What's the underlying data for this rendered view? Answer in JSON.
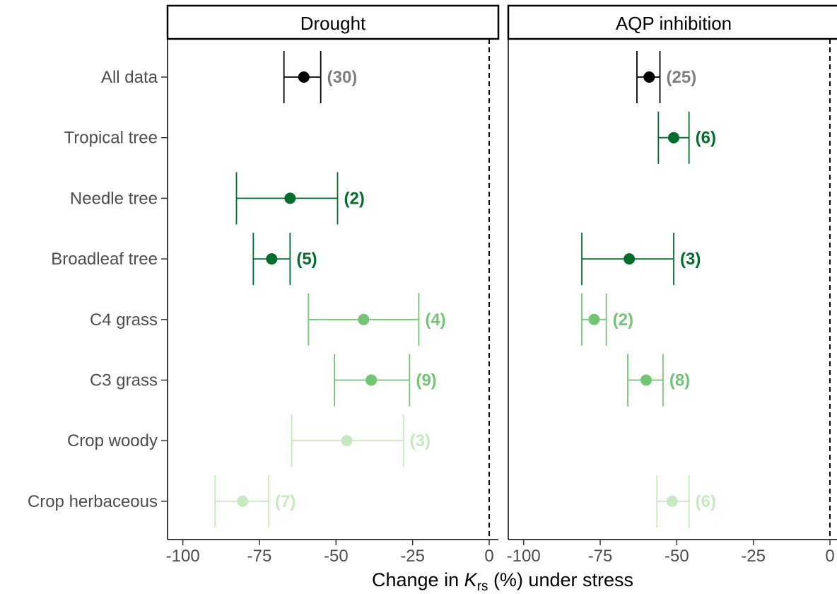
{
  "chart_data": {
    "type": "forest",
    "xlabel_parts": {
      "before": "Change in ",
      "K": "K",
      "sub": "rs",
      "after": " (%) under stress"
    },
    "xlim": [
      -105,
      3
    ],
    "xticks": [
      -100,
      -75,
      -50,
      -25,
      0
    ],
    "reference_line": 0,
    "categories": [
      "All data",
      "Tropical tree",
      "Needle tree",
      "Broadleaf tree",
      "C4 grass",
      "C3 grass",
      "Crop woody",
      "Crop herbaceous"
    ],
    "colors": {
      "All data": "#000000",
      "Tropical tree": "#006d2c",
      "Needle tree": "#006d2c",
      "Broadleaf tree": "#006d2c",
      "C4 grass": "#74c476",
      "C3 grass": "#74c476",
      "Crop woody": "#c7e9c0",
      "Crop herbaceous": "#c7e9c0"
    },
    "label_colors": {
      "All data": "#7f7f7f",
      "Tropical tree": "#006d2c",
      "Needle tree": "#006d2c",
      "Broadleaf tree": "#006d2c",
      "C4 grass": "#74c476",
      "C3 grass": "#74c476",
      "Crop woody": "#c7e9c0",
      "Crop herbaceous": "#c7e9c0"
    },
    "panels": [
      {
        "title": "Drought",
        "rows": [
          {
            "category": "All data",
            "mean": -60.5,
            "lower": -67,
            "upper": -55,
            "n": "(30)"
          },
          {
            "category": "Needle tree",
            "mean": -65,
            "lower": -82.5,
            "upper": -49.5,
            "n": "(2)"
          },
          {
            "category": "Broadleaf tree",
            "mean": -71,
            "lower": -77,
            "upper": -65,
            "n": "(5)"
          },
          {
            "category": "C4 grass",
            "mean": -41,
            "lower": -59,
            "upper": -23,
            "n": "(4)"
          },
          {
            "category": "C3 grass",
            "mean": -38.5,
            "lower": -50.5,
            "upper": -26,
            "n": "(9)"
          },
          {
            "category": "Crop woody",
            "mean": -46.5,
            "lower": -64.5,
            "upper": -28,
            "n": "(3)"
          },
          {
            "category": "Crop herbaceous",
            "mean": -80.5,
            "lower": -89.5,
            "upper": -72,
            "n": "(7)"
          }
        ]
      },
      {
        "title": "AQP inhibition",
        "rows": [
          {
            "category": "All data",
            "mean": -59,
            "lower": -63,
            "upper": -55.5,
            "n": "(25)"
          },
          {
            "category": "Tropical tree",
            "mean": -51,
            "lower": -56,
            "upper": -46,
            "n": "(6)"
          },
          {
            "category": "Broadleaf tree",
            "mean": -65.5,
            "lower": -81,
            "upper": -51,
            "n": "(3)"
          },
          {
            "category": "C4 grass",
            "mean": -77,
            "lower": -81,
            "upper": -73,
            "n": "(2)"
          },
          {
            "category": "C3 grass",
            "mean": -60,
            "lower": -66,
            "upper": -54.5,
            "n": "(8)"
          },
          {
            "category": "Crop herbaceous",
            "mean": -51.5,
            "lower": -56.5,
            "upper": -46,
            "n": "(6)"
          }
        ]
      }
    ]
  }
}
